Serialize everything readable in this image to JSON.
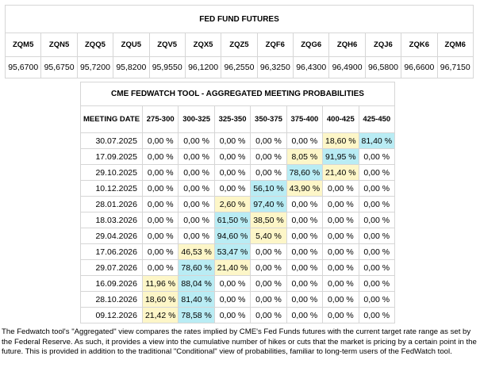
{
  "futures": {
    "title": "FED FUND FUTURES",
    "contracts": [
      "ZQM5",
      "ZQN5",
      "ZQQ5",
      "ZQU5",
      "ZQV5",
      "ZQX5",
      "ZQZ5",
      "ZQF6",
      "ZQG6",
      "ZQH6",
      "ZQJ6",
      "ZQK6",
      "ZQM6"
    ],
    "prices": [
      "95,6700",
      "95,6750",
      "95,7200",
      "95,8200",
      "95,9550",
      "96,1200",
      "96,2550",
      "96,3250",
      "96,4300",
      "96,4900",
      "96,5800",
      "96,6600",
      "96,7150"
    ]
  },
  "probabilities": {
    "title": "CME FEDWATCH TOOL - AGGREGATED MEETING PROBABILITIES",
    "date_header": "MEETING DATE",
    "ranges": [
      "275-300",
      "300-325",
      "325-350",
      "350-375",
      "375-400",
      "400-425",
      "425-450"
    ],
    "colors": {
      "highlight_low": "#fdf6c8",
      "highlight_high": "#b9ecf4"
    },
    "rows": [
      {
        "date": "30.07.2025",
        "values": [
          "0,00 %",
          "0,00 %",
          "0,00 %",
          "0,00 %",
          "0,00 %",
          "18,60 %",
          "81,40 %"
        ],
        "hl": {
          "5": "y",
          "6": "b"
        }
      },
      {
        "date": "17.09.2025",
        "values": [
          "0,00 %",
          "0,00 %",
          "0,00 %",
          "0,00 %",
          "8,05 %",
          "91,95 %",
          "0,00 %"
        ],
        "hl": {
          "4": "y",
          "5": "b"
        }
      },
      {
        "date": "29.10.2025",
        "values": [
          "0,00 %",
          "0,00 %",
          "0,00 %",
          "0,00 %",
          "78,60 %",
          "21,40 %",
          "0,00 %"
        ],
        "hl": {
          "4": "b",
          "5": "y"
        }
      },
      {
        "date": "10.12.2025",
        "values": [
          "0,00 %",
          "0,00 %",
          "0,00 %",
          "56,10 %",
          "43,90 %",
          "0,00 %",
          "0,00 %"
        ],
        "hl": {
          "3": "b",
          "4": "y"
        }
      },
      {
        "date": "28.01.2026",
        "values": [
          "0,00 %",
          "0,00 %",
          "2,60 %",
          "97,40 %",
          "0,00 %",
          "0,00 %",
          "0,00 %"
        ],
        "hl": {
          "2": "y",
          "3": "b"
        }
      },
      {
        "date": "18.03.2026",
        "values": [
          "0,00 %",
          "0,00 %",
          "61,50 %",
          "38,50 %",
          "0,00 %",
          "0,00 %",
          "0,00 %"
        ],
        "hl": {
          "2": "b",
          "3": "y"
        }
      },
      {
        "date": "29.04.2026",
        "values": [
          "0,00 %",
          "0,00 %",
          "94,60 %",
          "5,40 %",
          "0,00 %",
          "0,00 %",
          "0,00 %"
        ],
        "hl": {
          "2": "b",
          "3": "y"
        }
      },
      {
        "date": "17.06.2026",
        "values": [
          "0,00 %",
          "46,53 %",
          "53,47 %",
          "0,00 %",
          "0,00 %",
          "0,00 %",
          "0,00 %"
        ],
        "hl": {
          "1": "y",
          "2": "b"
        }
      },
      {
        "date": "29.07.2026",
        "values": [
          "0,00 %",
          "78,60 %",
          "21,40 %",
          "0,00 %",
          "0,00 %",
          "0,00 %",
          "0,00 %"
        ],
        "hl": {
          "1": "b",
          "2": "y"
        }
      },
      {
        "date": "16.09.2026",
        "values": [
          "11,96 %",
          "88,04 %",
          "0,00 %",
          "0,00 %",
          "0,00 %",
          "0,00 %",
          "0,00 %"
        ],
        "hl": {
          "0": "y",
          "1": "b"
        }
      },
      {
        "date": "28.10.2026",
        "values": [
          "18,60 %",
          "81,40 %",
          "0,00 %",
          "0,00 %",
          "0,00 %",
          "0,00 %",
          "0,00 %"
        ],
        "hl": {
          "0": "y",
          "1": "b"
        }
      },
      {
        "date": "09.12.2026",
        "values": [
          "21,42 %",
          "78,58 %",
          "0,00 %",
          "0,00 %",
          "0,00 %",
          "0,00 %",
          "0,00 %"
        ],
        "hl": {
          "0": "y",
          "1": "b"
        }
      }
    ]
  },
  "note": "The Fedwatch tool's \"Aggregated\" view compares the rates implied by CME's Fed Funds futures with the current target rate range as set by the Federal Reserve. As such, it provides a view into the cumulative number of hikes or cuts that the market is pricing by a certain point in the future. This is provided in addition to the traditional \"Conditional\" view of probabilities, familiar to long-term users of the FedWatch tool."
}
